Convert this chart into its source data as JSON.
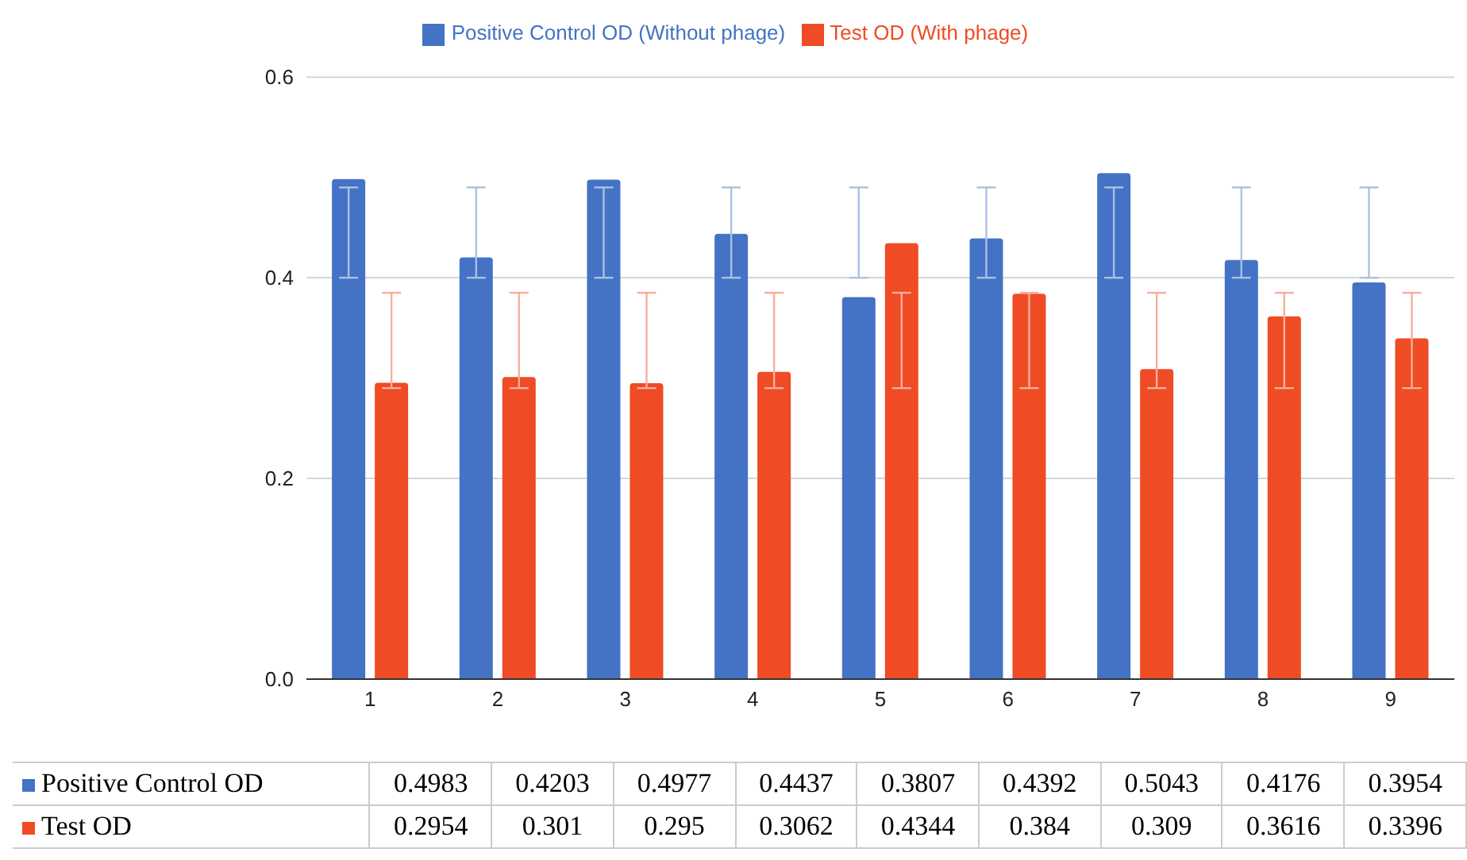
{
  "chart_data": {
    "type": "bar",
    "categories": [
      "1",
      "2",
      "3",
      "4",
      "5",
      "6",
      "7",
      "8",
      "9"
    ],
    "series": [
      {
        "name": "Positive Control OD (Without phage)",
        "color": "#4472c4",
        "values": [
          0.4983,
          0.4203,
          0.4977,
          0.4437,
          0.3807,
          0.4392,
          0.5043,
          0.4176,
          0.3954
        ],
        "errors": [
          [
            0.4,
            0.49
          ],
          [
            0.4,
            0.49
          ],
          [
            0.4,
            0.49
          ],
          [
            0.4,
            0.49
          ],
          [
            0.4,
            0.49
          ],
          [
            0.4,
            0.49
          ],
          [
            0.4,
            0.49
          ],
          [
            0.4,
            0.49
          ],
          [
            0.4,
            0.49
          ]
        ]
      },
      {
        "name": "Test OD (With phage)",
        "color": "#ef4b24",
        "values": [
          0.2954,
          0.301,
          0.295,
          0.3062,
          0.4344,
          0.384,
          0.309,
          0.3616,
          0.3396
        ],
        "errors": [
          [
            0.29,
            0.385
          ],
          [
            0.29,
            0.385
          ],
          [
            0.29,
            0.385
          ],
          [
            0.29,
            0.385
          ],
          [
            0.29,
            0.385
          ],
          [
            0.29,
            0.385
          ],
          [
            0.29,
            0.385
          ],
          [
            0.29,
            0.385
          ],
          [
            0.29,
            0.385
          ]
        ]
      }
    ],
    "ylim": [
      0,
      0.6
    ],
    "yticks": [
      {
        "value": 0,
        "label": "0.0"
      },
      {
        "value": 0.2,
        "label": "0.2"
      },
      {
        "value": 0.4,
        "label": "0.4"
      },
      {
        "value": 0.6,
        "label": "0.6"
      }
    ],
    "grid": "y",
    "legend": "top",
    "data_labels": true,
    "annotations": [
      "Positive Control OD",
      "Test OD"
    ]
  }
}
